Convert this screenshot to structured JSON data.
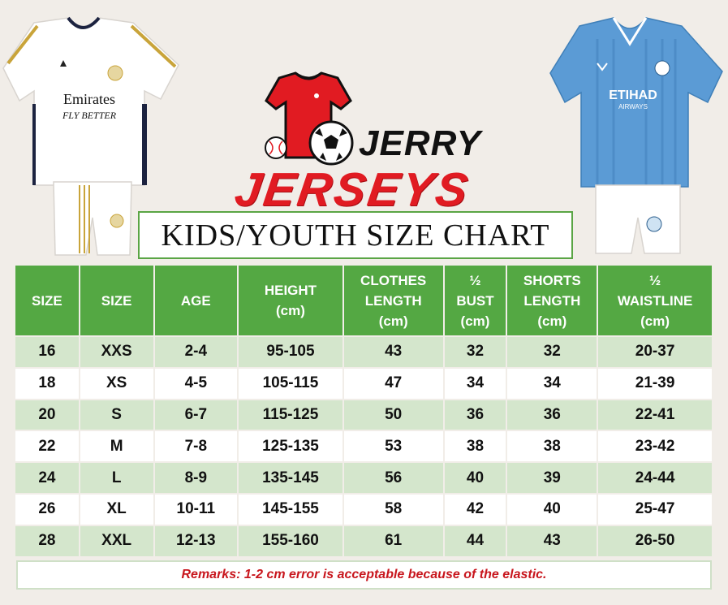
{
  "brand": {
    "top": "JERRY",
    "bottom": "JERSEYS",
    "accent_color": "#e11b22"
  },
  "left_kit": {
    "sponsor_line1": "Emirates",
    "sponsor_line2": "FLY BETTER",
    "colors": {
      "body": "#ffffff",
      "trim": "#c9a43a",
      "accent": "#1c2340"
    }
  },
  "right_kit": {
    "sponsor_line1": "ETIHAD",
    "sponsor_line2": "AIRWAYS",
    "colors": {
      "body": "#5b9bd5",
      "shorts": "#ffffff"
    }
  },
  "title": "KIDS/YOUTH SIZE CHART",
  "table": {
    "header_color": "#54a843",
    "headers": [
      [
        "SIZE"
      ],
      [
        "SIZE"
      ],
      [
        "AGE"
      ],
      [
        "HEIGHT",
        "(cm)"
      ],
      [
        "CLOTHES",
        "LENGTH",
        "(cm)"
      ],
      [
        "½",
        "BUST",
        "(cm)"
      ],
      [
        "SHORTS",
        "LENGTH",
        "(cm)"
      ],
      [
        "½",
        "WAISTLINE",
        "(cm)"
      ]
    ],
    "rows": [
      [
        "16",
        "XXS",
        "2-4",
        "95-105",
        "43",
        "32",
        "32",
        "20-37"
      ],
      [
        "18",
        "XS",
        "4-5",
        "105-115",
        "47",
        "34",
        "34",
        "21-39"
      ],
      [
        "20",
        "S",
        "6-7",
        "115-125",
        "50",
        "36",
        "36",
        "22-41"
      ],
      [
        "22",
        "M",
        "7-8",
        "125-135",
        "53",
        "38",
        "38",
        "23-42"
      ],
      [
        "24",
        "L",
        "8-9",
        "135-145",
        "56",
        "40",
        "39",
        "24-44"
      ],
      [
        "26",
        "XL",
        "10-11",
        "145-155",
        "58",
        "42",
        "40",
        "25-47"
      ],
      [
        "28",
        "XXL",
        "12-13",
        "155-160",
        "61",
        "44",
        "43",
        "26-50"
      ]
    ]
  },
  "remarks": "Remarks: 1-2 cm error is acceptable because of the elastic."
}
